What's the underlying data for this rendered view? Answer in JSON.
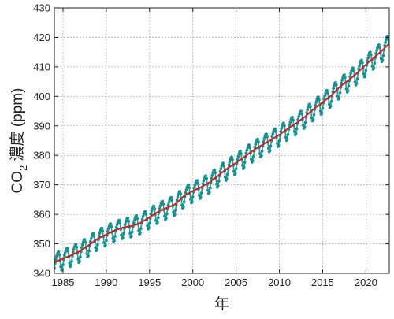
{
  "chart_data": {
    "type": "line",
    "title": "",
    "xlabel": "年",
    "ylabel_main": "CO",
    "ylabel_sub": "2",
    "ylabel_rest": " 濃度 (ppm)",
    "xlim": [
      1984.0,
      2022.7
    ],
    "ylim": [
      340,
      430
    ],
    "xticks": [
      1985,
      1990,
      1995,
      2000,
      2005,
      2010,
      2015,
      2020
    ],
    "yticks": [
      340,
      350,
      360,
      370,
      380,
      390,
      400,
      410,
      420,
      430
    ],
    "grid": true,
    "legend": "none",
    "series": [
      {
        "kind": "monthly-observations",
        "color": "#1a9090",
        "seasonal_amplitude_ppm": 3.2,
        "x": [
          1984.0,
          1985,
          1986,
          1987,
          1988,
          1989,
          1990,
          1991,
          1992,
          1993,
          1994,
          1995,
          1996,
          1997,
          1998,
          1999,
          2000,
          2001,
          2002,
          2003,
          2004,
          2005,
          2006,
          2007,
          2008,
          2009,
          2010,
          2011,
          2012,
          2013,
          2014,
          2015,
          2016,
          2017,
          2018,
          2019,
          2020,
          2021,
          2022,
          2022.7
        ],
        "y": [
          343.8,
          345.0,
          346.2,
          347.6,
          349.6,
          351.7,
          353.2,
          354.6,
          355.6,
          356.1,
          357.2,
          359.0,
          360.9,
          362.2,
          363.5,
          366.3,
          367.9,
          369.3,
          371.0,
          373.3,
          375.6,
          377.5,
          379.6,
          381.7,
          383.5,
          385.2,
          387.0,
          389.1,
          391.0,
          393.2,
          395.8,
          398.0,
          400.3,
          403.3,
          405.5,
          408.0,
          410.8,
          413.3,
          415.9,
          418.0
        ]
      },
      {
        "kind": "trend",
        "color": "#cc2020",
        "x": [
          1984.0,
          1985,
          1986,
          1987,
          1988,
          1989,
          1990,
          1991,
          1992,
          1993,
          1994,
          1995,
          1996,
          1997,
          1998,
          1999,
          2000,
          2001,
          2002,
          2003,
          2004,
          2005,
          2006,
          2007,
          2008,
          2009,
          2010,
          2011,
          2012,
          2013,
          2014,
          2015,
          2016,
          2017,
          2018,
          2019,
          2020,
          2021,
          2022,
          2022.7
        ],
        "y": [
          343.8,
          345.0,
          346.2,
          347.6,
          349.6,
          351.7,
          353.2,
          354.6,
          355.6,
          356.1,
          357.2,
          359.0,
          360.9,
          362.2,
          363.5,
          366.3,
          367.9,
          369.3,
          371.0,
          373.3,
          375.6,
          377.5,
          379.6,
          381.7,
          383.5,
          385.2,
          387.0,
          389.1,
          391.0,
          393.2,
          395.8,
          398.0,
          400.3,
          403.3,
          405.5,
          408.0,
          410.8,
          413.3,
          415.9,
          418.0
        ]
      }
    ]
  }
}
